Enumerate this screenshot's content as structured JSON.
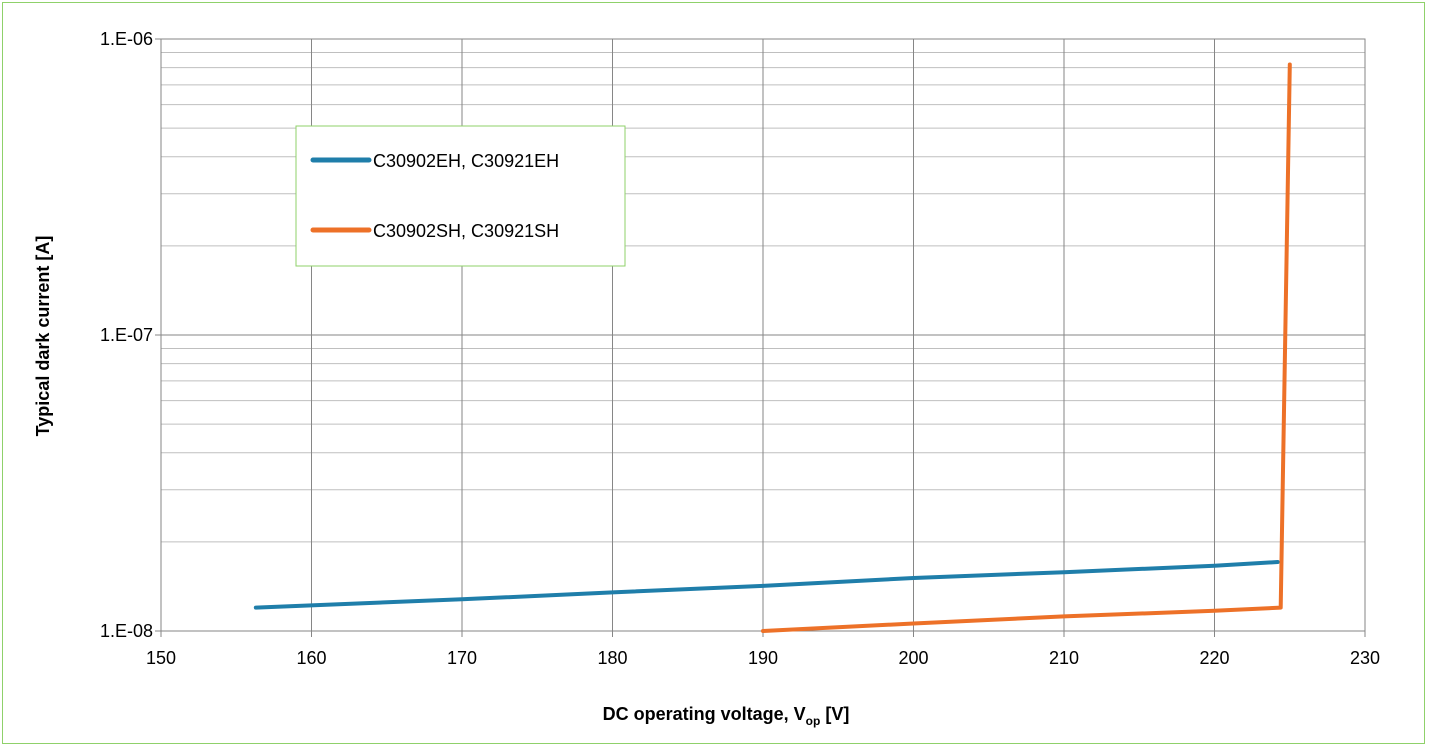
{
  "chart_data": {
    "type": "line",
    "title": "",
    "xlabel": "DC operating voltage, V",
    "xlabel_subscript": "op",
    "xlabel_suffix": " [V]",
    "ylabel": "Typical dark current [A]",
    "xlim": [
      150,
      230
    ],
    "ylim": [
      1e-08,
      1e-06
    ],
    "yscale": "log",
    "grid": true,
    "legend_position": "top-left",
    "x_ticks": [
      "150",
      "160",
      "170",
      "180",
      "190",
      "200",
      "210",
      "220",
      "230"
    ],
    "y_ticks": [
      "1.E-08",
      "1.E-07",
      "1.E-06"
    ],
    "series": [
      {
        "name": "C30902EH, C30921EH",
        "color": "#1f7eaa",
        "x": [
          156.3,
          170,
          180,
          190,
          200,
          210,
          220,
          224.2
        ],
        "y": [
          1.2e-08,
          1.28e-08,
          1.35e-08,
          1.42e-08,
          1.51e-08,
          1.58e-08,
          1.66e-08,
          1.71e-08
        ]
      },
      {
        "name": "C30902SH, C30921SH",
        "color": "#ed7128",
        "x": [
          190,
          200,
          210,
          220,
          224.4,
          225
        ],
        "y": [
          1e-08,
          1.06e-08,
          1.12e-08,
          1.17e-08,
          1.2e-08,
          8.2e-07
        ]
      }
    ]
  }
}
